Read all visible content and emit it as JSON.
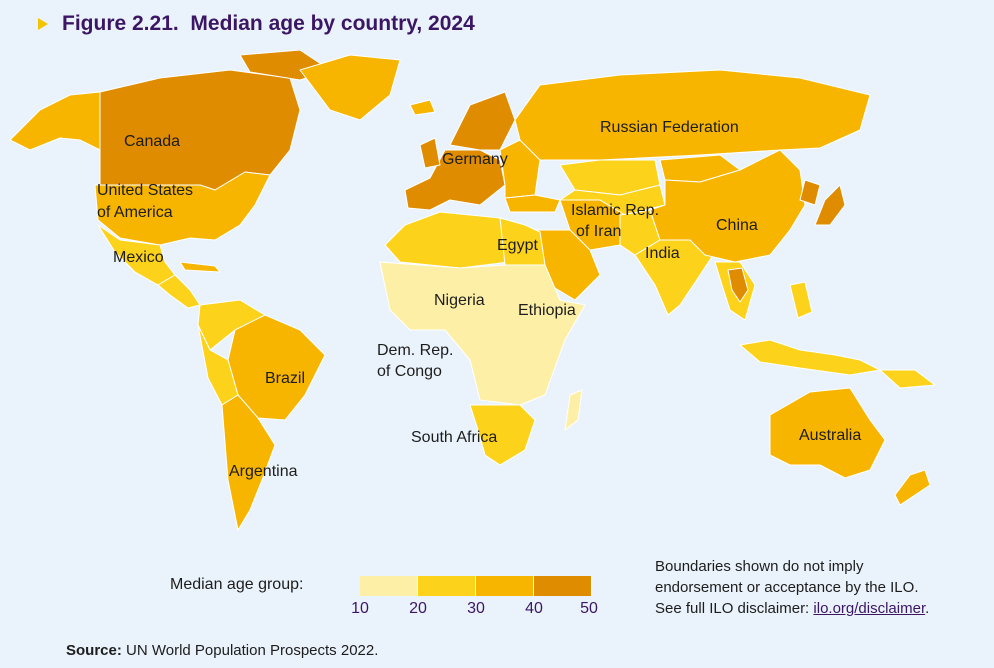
{
  "figure": {
    "number": "Figure 2.21.",
    "title": "Median age by country, 2024"
  },
  "colors": {
    "ocean": "#eaf3fb",
    "age_10_20": "#fdf0a6",
    "age_20_30": "#fdd21a",
    "age_30_40": "#f7b500",
    "age_40_50": "#df8c00",
    "title": "#3b1665"
  },
  "legend": {
    "title": "Median age group:",
    "ticks": [
      "10",
      "20",
      "30",
      "40",
      "50"
    ],
    "bins": [
      "10-20",
      "20-30",
      "30-40",
      "40-50"
    ]
  },
  "country_labels": [
    {
      "name": "Canada",
      "group": "40-50"
    },
    {
      "name": "United States",
      "name2": "of America",
      "group": "30-40"
    },
    {
      "name": "Mexico",
      "group": "20-30"
    },
    {
      "name": "Brazil",
      "group": "30-40"
    },
    {
      "name": "Argentina",
      "group": "30-40"
    },
    {
      "name": "Russian Federation",
      "group": "30-40"
    },
    {
      "name": "Germany",
      "group": "40-50"
    },
    {
      "name": "Islamic Rep.",
      "name2": "of Iran",
      "group": "30-40"
    },
    {
      "name": "Egypt",
      "group": "20-30"
    },
    {
      "name": "Nigeria",
      "group": "10-20"
    },
    {
      "name": "Ethiopia",
      "group": "10-20"
    },
    {
      "name": "Dem. Rep.",
      "name2": "of Congo",
      "group": "10-20"
    },
    {
      "name": "South Africa",
      "group": "20-30"
    },
    {
      "name": "India",
      "group": "20-30"
    },
    {
      "name": "China",
      "group": "30-40"
    },
    {
      "name": "Australia",
      "group": "30-40"
    }
  ],
  "disclaimer": {
    "line1": "Boundaries shown do not imply",
    "line2": "endorsement or acceptance by the ILO.",
    "line3_prefix": "See full ILO disclaimer: ",
    "link": "ilo.org/disclaimer",
    "line3_suffix": "."
  },
  "source": {
    "label": "Source:",
    "text": " UN World Population Prospects 2022."
  }
}
